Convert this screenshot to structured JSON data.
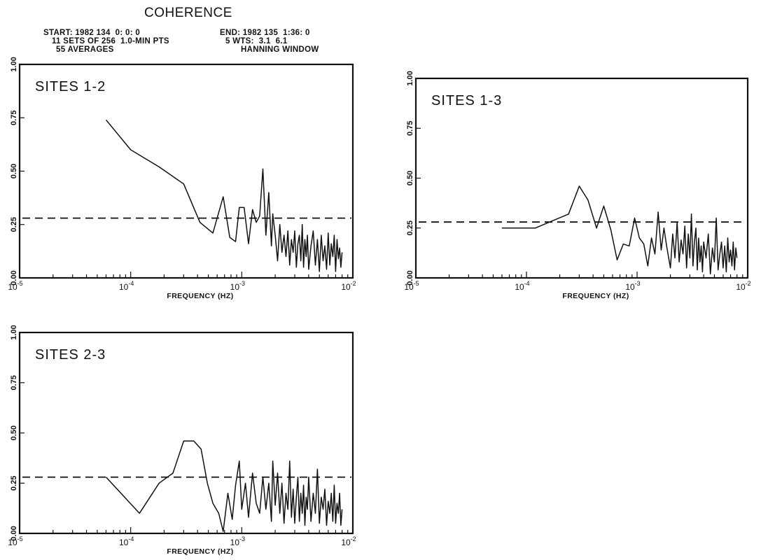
{
  "header": {
    "title": "COHERENCE",
    "lines": [
      {
        "left": "START: 1982 134  0: 0: 0",
        "right": "END: 1982 135  1:36: 0"
      },
      {
        "left": "11 SETS OF 256  1.0-MIN PTS",
        "right": "5 WTS:  3.1  6.1"
      },
      {
        "left": "55 AVERAGES",
        "right": "HANNING WINDOW"
      }
    ]
  },
  "chart_data": [
    {
      "type": "line",
      "label": "SITES 1-2",
      "xlabel": "FREQUENCY (HZ)",
      "xscale": "log",
      "xlim": [
        1e-05,
        0.01
      ],
      "ylim": [
        0,
        1
      ],
      "yticks": [
        "0.00",
        "0.25",
        "0.50",
        "0.75",
        "1.00"
      ],
      "xticks": [
        {
          "base": "10",
          "exp": "-5"
        },
        {
          "base": "10",
          "exp": "-4"
        },
        {
          "base": "10",
          "exp": "-3"
        },
        {
          "base": "10",
          "exp": "-2"
        }
      ],
      "reference_line": 0.28,
      "series": [
        {
          "x": [
            6e-05,
            0.0001,
            0.00018,
            0.0003,
            0.00042,
            0.00055,
            0.00068,
            0.00078,
            0.00088,
            0.00095,
            0.00105,
            0.00115,
            0.00125,
            0.00135,
            0.00145,
            0.00155,
            0.00165,
            0.00175,
            0.00185,
            0.0019,
            0.002,
            0.0021,
            0.0022,
            0.0023,
            0.0024,
            0.0025,
            0.0026,
            0.0027,
            0.0028,
            0.0029,
            0.003,
            0.0031,
            0.0032,
            0.0033,
            0.0034,
            0.0035,
            0.0036,
            0.0037,
            0.0038,
            0.0039,
            0.004,
            0.0042,
            0.0044,
            0.0046,
            0.0048,
            0.005,
            0.0052,
            0.0054,
            0.0056,
            0.0058,
            0.006,
            0.0062,
            0.0064,
            0.0066,
            0.0068,
            0.007,
            0.0072,
            0.0074,
            0.0076,
            0.0078,
            0.008
          ],
          "y": [
            0.74,
            0.6,
            0.52,
            0.44,
            0.26,
            0.21,
            0.38,
            0.19,
            0.17,
            0.33,
            0.33,
            0.16,
            0.32,
            0.26,
            0.29,
            0.51,
            0.2,
            0.4,
            0.15,
            0.3,
            0.2,
            0.08,
            0.25,
            0.12,
            0.2,
            0.1,
            0.22,
            0.06,
            0.18,
            0.12,
            0.22,
            0.05,
            0.16,
            0.2,
            0.08,
            0.25,
            0.05,
            0.18,
            0.1,
            0.2,
            0.04,
            0.15,
            0.22,
            0.06,
            0.18,
            0.03,
            0.2,
            0.08,
            0.15,
            0.04,
            0.21,
            0.06,
            0.16,
            0.1,
            0.2,
            0.03,
            0.18,
            0.09,
            0.14,
            0.05,
            0.12
          ]
        }
      ]
    },
    {
      "type": "line",
      "label": "SITES 1-3",
      "xlabel": "FREQUENCY (HZ)",
      "xscale": "log",
      "xlim": [
        1e-05,
        0.01
      ],
      "ylim": [
        0,
        1
      ],
      "yticks": [
        "0.00",
        "0.25",
        "0.50",
        "0.75",
        "1.00"
      ],
      "xticks": [
        {
          "base": "10",
          "exp": "-5"
        },
        {
          "base": "10",
          "exp": "-4"
        },
        {
          "base": "10",
          "exp": "-3"
        },
        {
          "base": "10",
          "exp": "-2"
        }
      ],
      "reference_line": 0.28,
      "series": [
        {
          "x": [
            6e-05,
            0.00012,
            0.00024,
            0.0003,
            0.00036,
            0.00043,
            0.0005,
            0.00058,
            0.00066,
            0.00075,
            0.00085,
            0.00095,
            0.00105,
            0.00115,
            0.00125,
            0.00135,
            0.00145,
            0.00155,
            0.00165,
            0.00175,
            0.00185,
            0.002,
            0.0021,
            0.0022,
            0.0023,
            0.0024,
            0.0025,
            0.0026,
            0.0027,
            0.0028,
            0.0029,
            0.003,
            0.0031,
            0.0032,
            0.0033,
            0.0034,
            0.0035,
            0.0036,
            0.0037,
            0.0038,
            0.0039,
            0.004,
            0.0042,
            0.0044,
            0.0046,
            0.0048,
            0.005,
            0.0052,
            0.0054,
            0.0056,
            0.0058,
            0.006,
            0.0062,
            0.0064,
            0.0066,
            0.0068,
            0.007,
            0.0072,
            0.0074,
            0.0076,
            0.0078,
            0.008
          ],
          "y": [
            0.25,
            0.25,
            0.32,
            0.46,
            0.39,
            0.25,
            0.36,
            0.24,
            0.09,
            0.17,
            0.16,
            0.3,
            0.2,
            0.17,
            0.06,
            0.2,
            0.12,
            0.33,
            0.14,
            0.25,
            0.16,
            0.05,
            0.22,
            0.1,
            0.28,
            0.08,
            0.19,
            0.12,
            0.26,
            0.05,
            0.22,
            0.1,
            0.32,
            0.06,
            0.18,
            0.25,
            0.04,
            0.2,
            0.08,
            0.16,
            0.03,
            0.18,
            0.1,
            0.22,
            0.02,
            0.15,
            0.08,
            0.3,
            0.04,
            0.12,
            0.18,
            0.05,
            0.16,
            0.03,
            0.2,
            0.08,
            0.14,
            0.06,
            0.18,
            0.04,
            0.15,
            0.1
          ]
        }
      ]
    },
    {
      "type": "line",
      "label": "SITES 2-3",
      "xlabel": "FREQUENCY (HZ)",
      "xscale": "log",
      "xlim": [
        1e-05,
        0.01
      ],
      "ylim": [
        0,
        1
      ],
      "yticks": [
        "0.00",
        "0.25",
        "0.50",
        "0.75",
        "1.00"
      ],
      "xticks": [
        {
          "base": "10",
          "exp": "-5"
        },
        {
          "base": "10",
          "exp": "-4"
        },
        {
          "base": "10",
          "exp": "-3"
        },
        {
          "base": "10",
          "exp": "-2"
        }
      ],
      "reference_line": 0.28,
      "series": [
        {
          "x": [
            6e-05,
            0.00012,
            0.00018,
            0.00024,
            0.0003,
            0.00037,
            0.00043,
            0.00049,
            0.00055,
            0.00062,
            0.00068,
            0.00075,
            0.00082,
            0.00088,
            0.00095,
            0.001,
            0.00108,
            0.00115,
            0.00125,
            0.00135,
            0.00145,
            0.00155,
            0.00165,
            0.00175,
            0.00185,
            0.0019,
            0.002,
            0.0021,
            0.0022,
            0.0023,
            0.0024,
            0.0025,
            0.0026,
            0.0027,
            0.0028,
            0.0029,
            0.003,
            0.0031,
            0.0032,
            0.0033,
            0.0034,
            0.0035,
            0.0036,
            0.0037,
            0.0038,
            0.0039,
            0.004,
            0.0042,
            0.0044,
            0.0046,
            0.0048,
            0.005,
            0.0052,
            0.0054,
            0.0056,
            0.0058,
            0.006,
            0.0062,
            0.0064,
            0.0066,
            0.0068,
            0.007,
            0.0072,
            0.0074,
            0.0076,
            0.0078,
            0.008
          ],
          "y": [
            0.28,
            0.1,
            0.25,
            0.3,
            0.46,
            0.46,
            0.42,
            0.25,
            0.15,
            0.1,
            0.01,
            0.2,
            0.07,
            0.24,
            0.36,
            0.12,
            0.25,
            0.08,
            0.3,
            0.15,
            0.1,
            0.28,
            0.12,
            0.25,
            0.06,
            0.36,
            0.14,
            0.3,
            0.1,
            0.25,
            0.05,
            0.2,
            0.12,
            0.36,
            0.08,
            0.22,
            0.05,
            0.18,
            0.28,
            0.06,
            0.2,
            0.1,
            0.24,
            0.04,
            0.18,
            0.12,
            0.28,
            0.06,
            0.2,
            0.1,
            0.32,
            0.05,
            0.18,
            0.12,
            0.22,
            0.04,
            0.16,
            0.1,
            0.2,
            0.06,
            0.24,
            0.05,
            0.15,
            0.1,
            0.2,
            0.04,
            0.12
          ]
        }
      ]
    }
  ]
}
